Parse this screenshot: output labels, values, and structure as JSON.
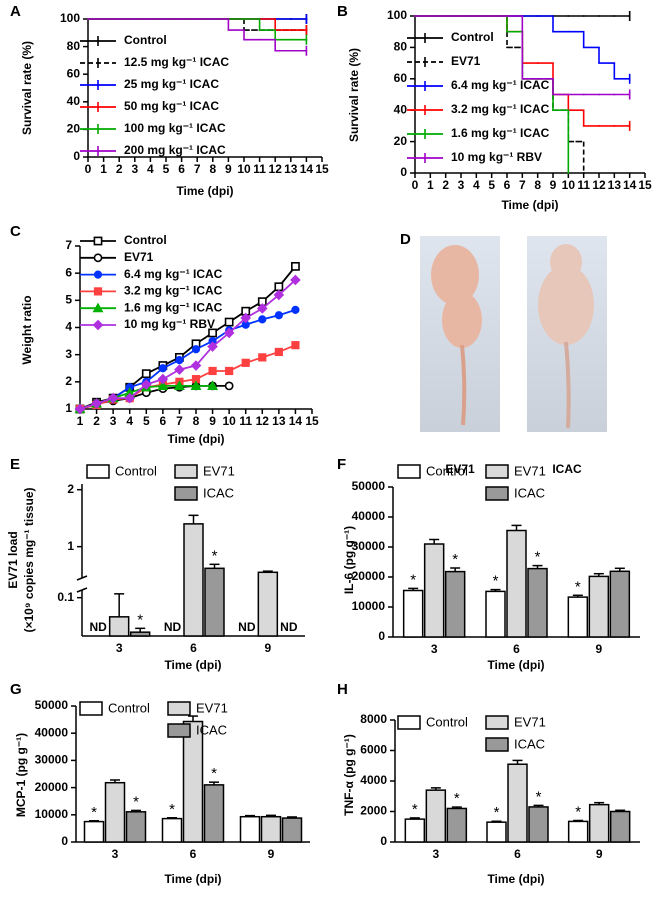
{
  "chart_data": [
    {
      "panel": "A",
      "type": "line",
      "step": true,
      "xlabel": "Time (dpi)",
      "ylabel": "Survival rate (%)",
      "x": [
        0,
        1,
        2,
        3,
        4,
        5,
        6,
        7,
        8,
        9,
        10,
        11,
        12,
        13,
        14
      ],
      "xlim": [
        0,
        15
      ],
      "xticks": [
        0,
        1,
        2,
        3,
        4,
        5,
        6,
        7,
        8,
        9,
        10,
        11,
        12,
        13,
        14,
        15
      ],
      "ylim": [
        0,
        100
      ],
      "yticks": [
        0,
        20,
        40,
        60,
        80,
        100
      ],
      "series": [
        {
          "name": "Control",
          "color": "#000000",
          "values": [
            100,
            100,
            100,
            100,
            100,
            100,
            100,
            100,
            100,
            100,
            100,
            100,
            100,
            100,
            100
          ]
        },
        {
          "name": "12.5 mg kg⁻¹ ICAC",
          "color": "#000000",
          "dashed": true,
          "values": [
            100,
            100,
            100,
            100,
            100,
            100,
            100,
            100,
            100,
            100,
            92,
            92,
            92,
            92,
            92
          ]
        },
        {
          "name": "25 mg kg⁻¹ ICAC",
          "color": "#0000ff",
          "values": [
            100,
            100,
            100,
            100,
            100,
            100,
            100,
            100,
            100,
            100,
            100,
            100,
            100,
            100,
            100
          ]
        },
        {
          "name": "50 mg kg⁻¹ ICAC",
          "color": "#ff0000",
          "values": [
            100,
            100,
            100,
            100,
            100,
            100,
            100,
            100,
            100,
            100,
            100,
            100,
            92,
            92,
            92
          ]
        },
        {
          "name": "100 mg kg⁻¹ ICAC",
          "color": "#00aa00",
          "values": [
            100,
            100,
            100,
            100,
            100,
            100,
            100,
            100,
            100,
            100,
            100,
            92,
            85,
            85,
            85
          ]
        },
        {
          "name": "200 mg kg⁻¹ ICAC",
          "color": "#a000c8",
          "values": [
            100,
            100,
            100,
            100,
            100,
            100,
            100,
            100,
            100,
            92,
            85,
            85,
            77,
            77,
            77
          ]
        }
      ]
    },
    {
      "panel": "B",
      "type": "line",
      "step": true,
      "xlabel": "Time (dpi)",
      "ylabel": "Survival rate (%)",
      "x": [
        0,
        1,
        2,
        3,
        4,
        5,
        6,
        7,
        8,
        9,
        10,
        11,
        12,
        13,
        14
      ],
      "xlim": [
        0,
        15
      ],
      "xticks": [
        0,
        1,
        2,
        3,
        4,
        5,
        6,
        7,
        8,
        9,
        10,
        11,
        12,
        13,
        14,
        15
      ],
      "ylim": [
        0,
        100
      ],
      "yticks": [
        0,
        20,
        40,
        60,
        80,
        100
      ],
      "series": [
        {
          "name": "Control",
          "color": "#000000",
          "values": [
            100,
            100,
            100,
            100,
            100,
            100,
            100,
            100,
            100,
            100,
            100,
            100,
            100,
            100,
            100
          ]
        },
        {
          "name": "EV71",
          "color": "#000000",
          "dashed": true,
          "values": [
            100,
            100,
            100,
            100,
            100,
            100,
            80,
            60,
            60,
            40,
            20,
            0,
            null,
            null,
            null
          ]
        },
        {
          "name": "6.4 mg kg⁻¹ ICAC",
          "color": "#0000ff",
          "values": [
            100,
            100,
            100,
            100,
            100,
            100,
            100,
            100,
            100,
            90,
            90,
            80,
            70,
            60,
            60
          ]
        },
        {
          "name": "3.2 mg kg⁻¹ ICAC",
          "color": "#ff0000",
          "values": [
            100,
            100,
            100,
            100,
            100,
            100,
            90,
            70,
            70,
            50,
            40,
            30,
            30,
            30,
            30
          ]
        },
        {
          "name": "1.6 mg kg⁻¹ ICAC",
          "color": "#00aa00",
          "values": [
            100,
            100,
            100,
            100,
            100,
            100,
            90,
            60,
            60,
            40,
            0,
            null,
            null,
            null,
            null
          ]
        },
        {
          "name": "10 mg kg⁻¹ RBV",
          "color": "#a000c8",
          "values": [
            100,
            100,
            100,
            100,
            100,
            100,
            100,
            60,
            60,
            50,
            50,
            50,
            50,
            50,
            50
          ]
        }
      ]
    },
    {
      "panel": "C",
      "type": "line",
      "xlabel": "Time (dpi)",
      "ylabel": "Weight ratio",
      "x": [
        1,
        2,
        3,
        4,
        5,
        6,
        7,
        8,
        9,
        10,
        11,
        12,
        13,
        14
      ],
      "xlim": [
        1,
        15
      ],
      "xticks": [
        1,
        2,
        3,
        4,
        5,
        6,
        7,
        8,
        9,
        10,
        11,
        12,
        13,
        14,
        15
      ],
      "ylim": [
        1,
        7
      ],
      "yticks": [
        1,
        2,
        3,
        4,
        5,
        6,
        7
      ],
      "series": [
        {
          "name": "Control",
          "color": "#000000",
          "marker": "square-open",
          "values": [
            1,
            1.25,
            1.4,
            1.8,
            2.3,
            2.6,
            2.9,
            3.4,
            3.8,
            4.2,
            4.6,
            4.95,
            5.5,
            6.25
          ]
        },
        {
          "name": "EV71",
          "color": "#000000",
          "marker": "circle-open",
          "values": [
            1,
            1.2,
            1.3,
            1.4,
            1.6,
            1.75,
            1.8,
            1.85,
            1.85,
            1.85,
            null,
            null,
            null,
            null
          ]
        },
        {
          "name": "6.4 mg kg⁻¹ ICAC",
          "color": "#0033ff",
          "marker": "circle",
          "values": [
            1,
            1.2,
            1.4,
            1.8,
            2.0,
            2.5,
            2.8,
            3.2,
            3.5,
            3.9,
            4.1,
            4.3,
            4.45,
            4.65
          ]
        },
        {
          "name": "3.2 mg kg⁻¹ ICAC",
          "color": "#ff4040",
          "marker": "square",
          "values": [
            1,
            1.15,
            1.35,
            1.4,
            1.8,
            1.9,
            2.0,
            2.1,
            2.4,
            2.4,
            2.7,
            2.9,
            3.1,
            3.35
          ]
        },
        {
          "name": "1.6 mg kg⁻¹ ICAC",
          "color": "#00b000",
          "marker": "triangle",
          "values": [
            1,
            1.2,
            1.4,
            1.6,
            1.8,
            1.85,
            1.85,
            1.85,
            1.85,
            null,
            null,
            null,
            null,
            null
          ]
        },
        {
          "name": "10 mg kg⁻¹ RBV",
          "color": "#b030e0",
          "marker": "diamond",
          "values": [
            1,
            1.2,
            1.4,
            1.4,
            1.9,
            2.1,
            2.45,
            2.6,
            3.3,
            3.8,
            4.35,
            4.7,
            5.2,
            5.75
          ]
        }
      ]
    },
    {
      "panel": "E",
      "type": "bar",
      "xlabel": "Time (dpi)",
      "ylabel": [
        "EV71 load",
        "(×10⁹ copies mg⁻¹ tissue)"
      ],
      "categories": [
        "3",
        "6",
        "9"
      ],
      "ylim": [
        0,
        2.1
      ],
      "ybreak": [
        0.12,
        0.45
      ],
      "yticks": [
        0.1,
        1,
        2
      ],
      "series": [
        {
          "name": "Control",
          "color": "#ffffff",
          "values": [
            null,
            null,
            null
          ],
          "errors": [
            null,
            null,
            null
          ],
          "value_labels": [
            "ND",
            "ND",
            "ND"
          ]
        },
        {
          "name": "EV71",
          "color": "#d9d9d9",
          "values": [
            0.05,
            1.4,
            0.55
          ],
          "errors": [
            0.06,
            0.15,
            0.02
          ]
        },
        {
          "name": "ICAC",
          "color": "#999999",
          "values": [
            0.01,
            0.62,
            null
          ],
          "errors": [
            0.01,
            0.07,
            null
          ],
          "value_labels": [
            null,
            null,
            "ND"
          ],
          "annotations": [
            "*",
            "*",
            null
          ]
        }
      ]
    },
    {
      "panel": "F",
      "type": "bar",
      "xlabel": "Time (dpi)",
      "ylabel": "IL-6 (pg g⁻¹)",
      "categories": [
        "3",
        "6",
        "9"
      ],
      "ylim": [
        0,
        50000
      ],
      "yticks": [
        0,
        10000,
        20000,
        30000,
        40000,
        50000
      ],
      "series": [
        {
          "name": "Control",
          "color": "#ffffff",
          "values": [
            15500,
            15200,
            13300
          ],
          "errors": [
            700,
            600,
            600
          ],
          "annotations": [
            "*",
            "*",
            "*"
          ]
        },
        {
          "name": "EV71",
          "color": "#d9d9d9",
          "values": [
            31000,
            35500,
            20200
          ],
          "errors": [
            1500,
            1700,
            900
          ]
        },
        {
          "name": "ICAC",
          "color": "#999999",
          "values": [
            21800,
            22800,
            21900
          ],
          "errors": [
            1200,
            1000,
            1000
          ],
          "annotations": [
            "*",
            "*",
            null
          ]
        }
      ]
    },
    {
      "panel": "G",
      "type": "bar",
      "xlabel": "Time (dpi)",
      "ylabel": "MCP-1 (pg g⁻¹)",
      "categories": [
        "3",
        "6",
        "9"
      ],
      "ylim": [
        0,
        50000
      ],
      "yticks": [
        0,
        10000,
        20000,
        30000,
        40000,
        50000
      ],
      "series": [
        {
          "name": "Control",
          "color": "#ffffff",
          "values": [
            7500,
            8600,
            9300
          ],
          "errors": [
            300,
            300,
            400
          ],
          "annotations": [
            "*",
            "*",
            null
          ]
        },
        {
          "name": "EV71",
          "color": "#d9d9d9",
          "values": [
            21800,
            44300,
            9300
          ],
          "errors": [
            1000,
            2000,
            500
          ]
        },
        {
          "name": "ICAC",
          "color": "#999999",
          "values": [
            11100,
            21000,
            8800
          ],
          "errors": [
            500,
            1000,
            400
          ],
          "annotations": [
            "*",
            "*",
            null
          ]
        }
      ]
    },
    {
      "panel": "H",
      "type": "bar",
      "xlabel": "Time (dpi)",
      "ylabel": "TNF-α (pg g⁻¹)",
      "categories": [
        "3",
        "6",
        "9"
      ],
      "ylim": [
        0,
        8000
      ],
      "yticks": [
        0,
        2000,
        4000,
        6000,
        8000
      ],
      "series": [
        {
          "name": "Control",
          "color": "#ffffff",
          "values": [
            1500,
            1300,
            1350
          ],
          "errors": [
            80,
            60,
            60
          ],
          "annotations": [
            "*",
            "*",
            "*"
          ]
        },
        {
          "name": "EV71",
          "color": "#d9d9d9",
          "values": [
            3400,
            5100,
            2450
          ],
          "errors": [
            150,
            250,
            130
          ]
        },
        {
          "name": "ICAC",
          "color": "#999999",
          "values": [
            2200,
            2300,
            2000
          ],
          "errors": [
            90,
            100,
            80
          ],
          "annotations": [
            "*",
            "*",
            null
          ]
        }
      ]
    }
  ],
  "photo": {
    "panel": "D",
    "labels": [
      "EV71",
      "ICAC"
    ]
  }
}
